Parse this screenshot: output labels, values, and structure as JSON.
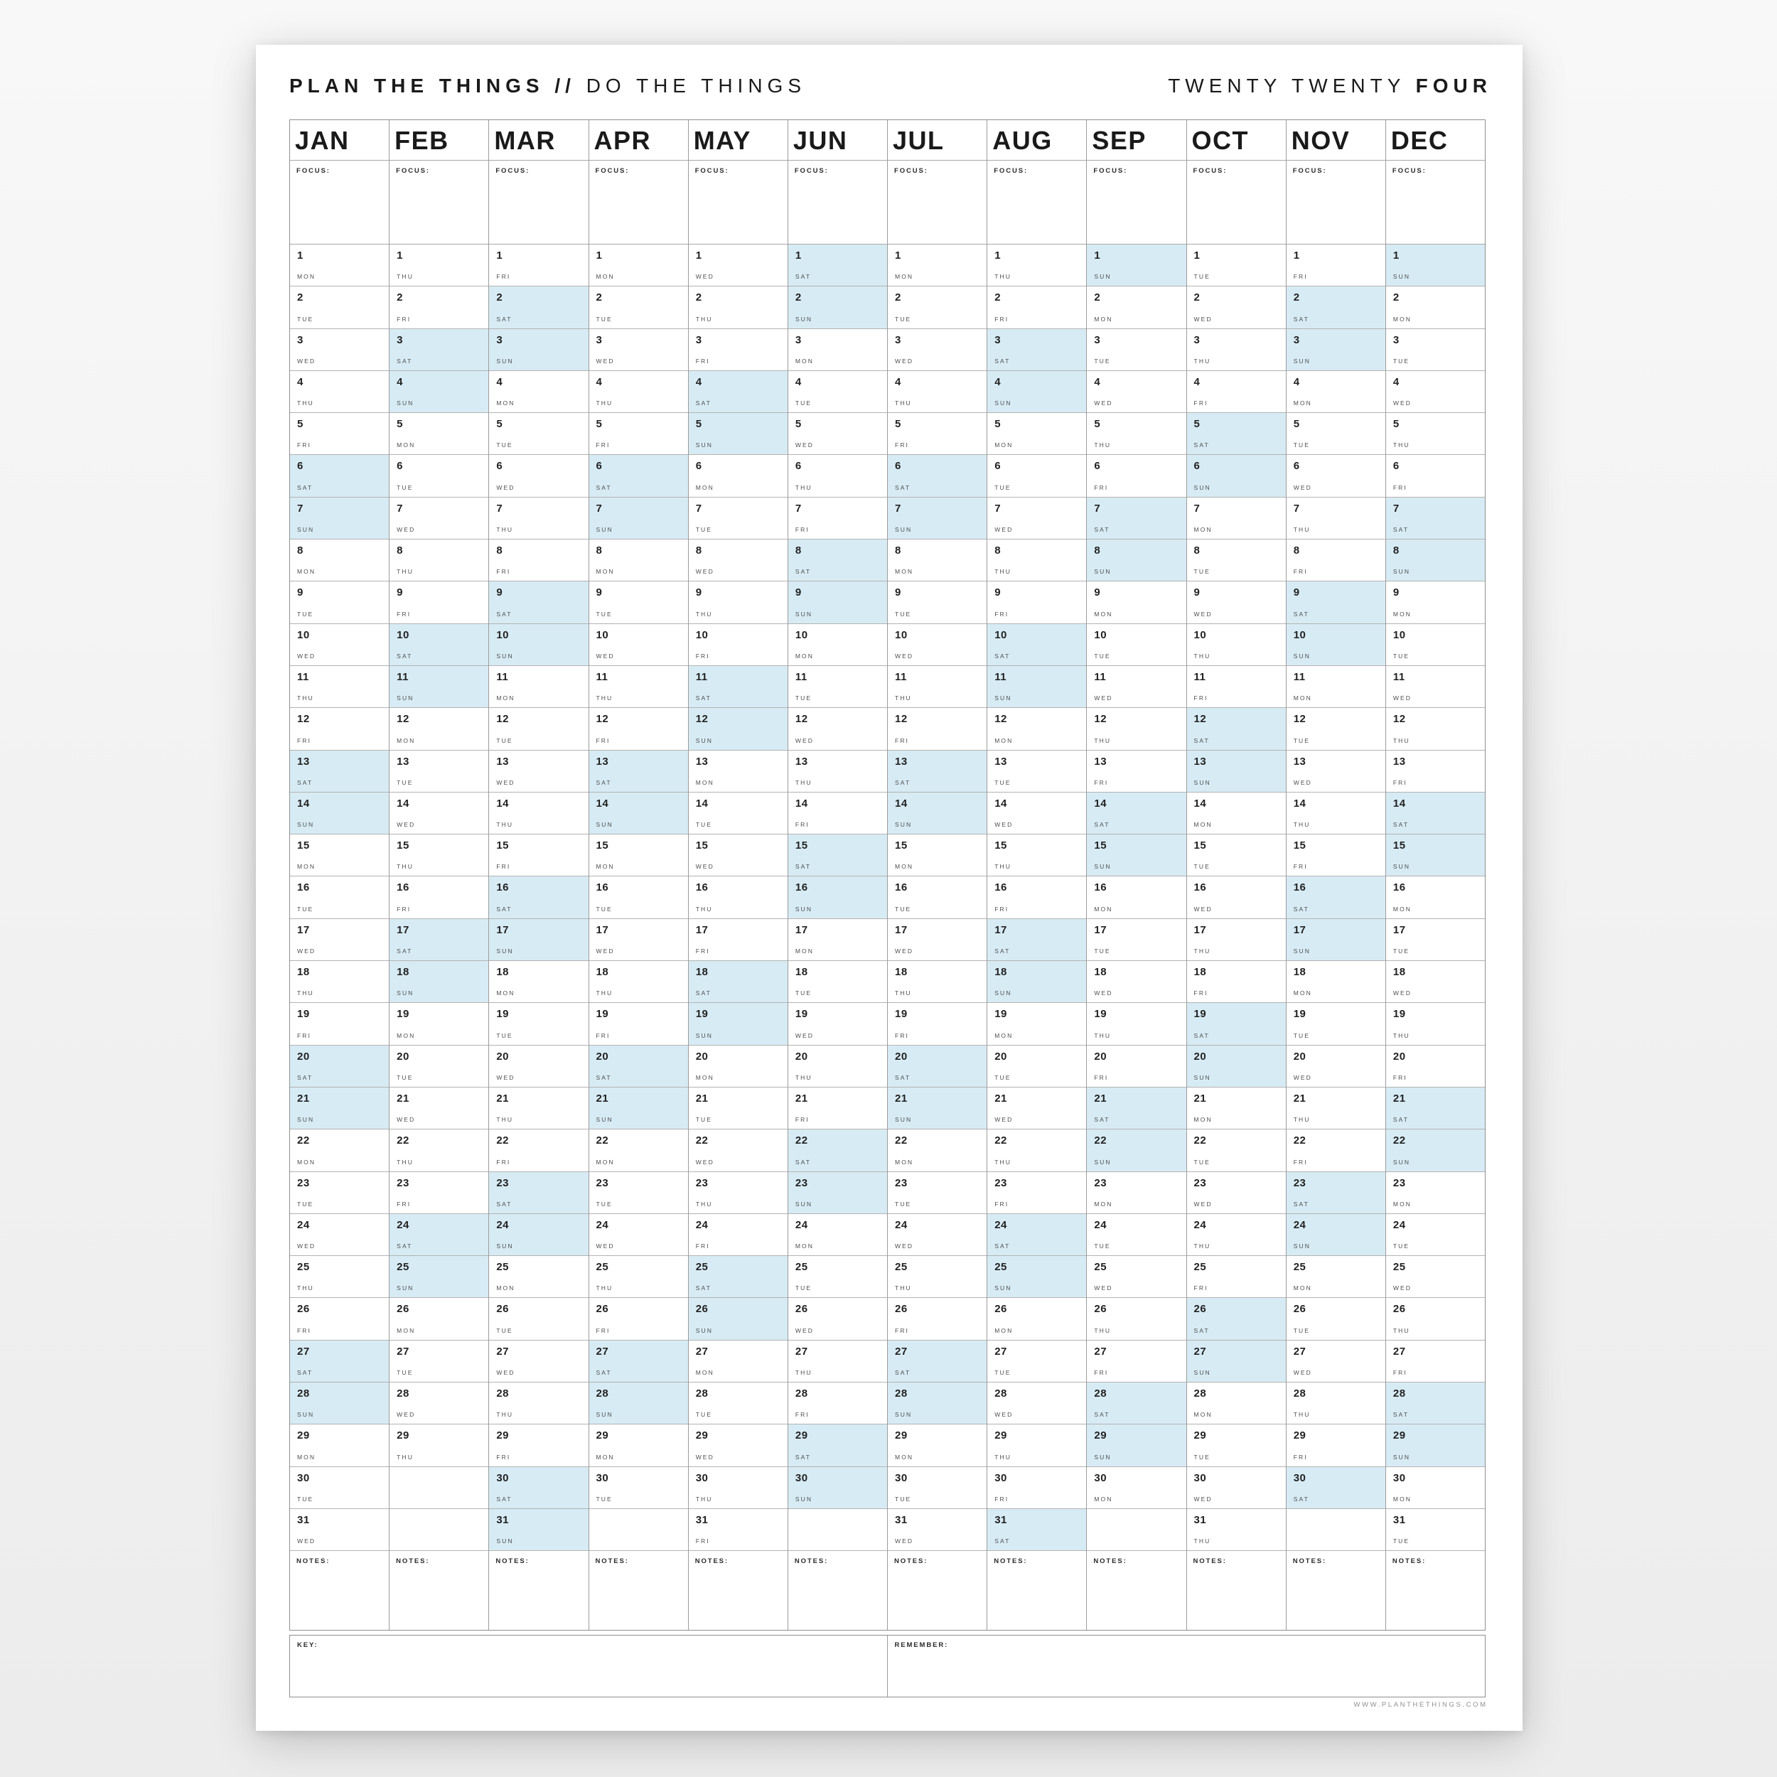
{
  "header": {
    "title_bold": "PLAN THE THINGS //",
    "title_light": "DO THE THINGS",
    "year_light": "TWENTY TWENTY",
    "year_bold": "FOUR"
  },
  "labels": {
    "focus": "FOCUS:",
    "notes": "NOTES:",
    "key": "KEY:",
    "remember": "REMEMBER:"
  },
  "footer": {
    "url": "WWW.PLANTHETHINGS.COM"
  },
  "colors": {
    "weekend_highlight": "#d7ebf4",
    "outer_border": "#8f8f8f",
    "column_border": "#9c9c9c",
    "row_border": "#b3b3b3",
    "canvas_bg": "#f2f2f2",
    "page_bg": "#ffffff",
    "day_number_text": "#222222",
    "weekday_text": "#4e4e4e",
    "url_text": "#8f8f8f"
  },
  "calendar": {
    "year": "2024",
    "rows": 31,
    "weekend_days": [
      "SAT",
      "SUN"
    ],
    "months": [
      {
        "label": "JAN",
        "weekdays": [
          "MON",
          "TUE",
          "WED",
          "THU",
          "FRI",
          "SAT",
          "SUN",
          "MON",
          "TUE",
          "WED",
          "THU",
          "FRI",
          "SAT",
          "SUN",
          "MON",
          "TUE",
          "WED",
          "THU",
          "FRI",
          "SAT",
          "SUN",
          "MON",
          "TUE",
          "WED",
          "THU",
          "FRI",
          "SAT",
          "SUN",
          "MON",
          "TUE",
          "WED"
        ]
      },
      {
        "label": "FEB",
        "weekdays": [
          "THU",
          "FRI",
          "SAT",
          "SUN",
          "MON",
          "TUE",
          "WED",
          "THU",
          "FRI",
          "SAT",
          "SUN",
          "MON",
          "TUE",
          "WED",
          "THU",
          "FRI",
          "SAT",
          "SUN",
          "MON",
          "TUE",
          "WED",
          "THU",
          "FRI",
          "SAT",
          "SUN",
          "MON",
          "TUE",
          "WED",
          "THU"
        ]
      },
      {
        "label": "MAR",
        "weekdays": [
          "FRI",
          "SAT",
          "SUN",
          "MON",
          "TUE",
          "WED",
          "THU",
          "FRI",
          "SAT",
          "SUN",
          "MON",
          "TUE",
          "WED",
          "THU",
          "FRI",
          "SAT",
          "SUN",
          "MON",
          "TUE",
          "WED",
          "THU",
          "FRI",
          "SAT",
          "SUN",
          "MON",
          "TUE",
          "WED",
          "THU",
          "FRI",
          "SAT",
          "SUN"
        ]
      },
      {
        "label": "APR",
        "weekdays": [
          "MON",
          "TUE",
          "WED",
          "THU",
          "FRI",
          "SAT",
          "SUN",
          "MON",
          "TUE",
          "WED",
          "THU",
          "FRI",
          "SAT",
          "SUN",
          "MON",
          "TUE",
          "WED",
          "THU",
          "FRI",
          "SAT",
          "SUN",
          "MON",
          "TUE",
          "WED",
          "THU",
          "FRI",
          "SAT",
          "SUN",
          "MON",
          "TUE"
        ]
      },
      {
        "label": "MAY",
        "weekdays": [
          "WED",
          "THU",
          "FRI",
          "SAT",
          "SUN",
          "MON",
          "TUE",
          "WED",
          "THU",
          "FRI",
          "SAT",
          "SUN",
          "MON",
          "TUE",
          "WED",
          "THU",
          "FRI",
          "SAT",
          "SUN",
          "MON",
          "TUE",
          "WED",
          "THU",
          "FRI",
          "SAT",
          "SUN",
          "MON",
          "TUE",
          "WED",
          "THU",
          "FRI"
        ]
      },
      {
        "label": "JUN",
        "weekdays": [
          "SAT",
          "SUN",
          "MON",
          "TUE",
          "WED",
          "THU",
          "FRI",
          "SAT",
          "SUN",
          "MON",
          "TUE",
          "WED",
          "THU",
          "FRI",
          "SAT",
          "SUN",
          "MON",
          "TUE",
          "WED",
          "THU",
          "FRI",
          "SAT",
          "SUN",
          "MON",
          "TUE",
          "WED",
          "THU",
          "FRI",
          "SAT",
          "SUN"
        ]
      },
      {
        "label": "JUL",
        "weekdays": [
          "MON",
          "TUE",
          "WED",
          "THU",
          "FRI",
          "SAT",
          "SUN",
          "MON",
          "TUE",
          "WED",
          "THU",
          "FRI",
          "SAT",
          "SUN",
          "MON",
          "TUE",
          "WED",
          "THU",
          "FRI",
          "SAT",
          "SUN",
          "MON",
          "TUE",
          "WED",
          "THU",
          "FRI",
          "SAT",
          "SUN",
          "MON",
          "TUE",
          "WED"
        ]
      },
      {
        "label": "AUG",
        "weekdays": [
          "THU",
          "FRI",
          "SAT",
          "SUN",
          "MON",
          "TUE",
          "WED",
          "THU",
          "FRI",
          "SAT",
          "SUN",
          "MON",
          "TUE",
          "WED",
          "THU",
          "FRI",
          "SAT",
          "SUN",
          "MON",
          "TUE",
          "WED",
          "THU",
          "FRI",
          "SAT",
          "SUN",
          "MON",
          "TUE",
          "WED",
          "THU",
          "FRI",
          "SAT"
        ]
      },
      {
        "label": "SEP",
        "weekdays": [
          "SUN",
          "MON",
          "TUE",
          "WED",
          "THU",
          "FRI",
          "SAT",
          "SUN",
          "MON",
          "TUE",
          "WED",
          "THU",
          "FRI",
          "SAT",
          "SUN",
          "MON",
          "TUE",
          "WED",
          "THU",
          "FRI",
          "SAT",
          "SUN",
          "MON",
          "TUE",
          "WED",
          "THU",
          "FRI",
          "SAT",
          "SUN",
          "MON"
        ]
      },
      {
        "label": "OCT",
        "weekdays": [
          "TUE",
          "WED",
          "THU",
          "FRI",
          "SAT",
          "SUN",
          "MON",
          "TUE",
          "WED",
          "THU",
          "FRI",
          "SAT",
          "SUN",
          "MON",
          "TUE",
          "WED",
          "THU",
          "FRI",
          "SAT",
          "SUN",
          "MON",
          "TUE",
          "WED",
          "THU",
          "FRI",
          "SAT",
          "SUN",
          "MON",
          "TUE",
          "WED",
          "THU"
        ]
      },
      {
        "label": "NOV",
        "weekdays": [
          "FRI",
          "SAT",
          "SUN",
          "MON",
          "TUE",
          "WED",
          "THU",
          "FRI",
          "SAT",
          "SUN",
          "MON",
          "TUE",
          "WED",
          "THU",
          "FRI",
          "SAT",
          "SUN",
          "MON",
          "TUE",
          "WED",
          "THU",
          "FRI",
          "SAT",
          "SUN",
          "MON",
          "TUE",
          "WED",
          "THU",
          "FRI",
          "SAT"
        ]
      },
      {
        "label": "DEC",
        "weekdays": [
          "SUN",
          "MON",
          "TUE",
          "WED",
          "THU",
          "FRI",
          "SAT",
          "SUN",
          "MON",
          "TUE",
          "WED",
          "THU",
          "FRI",
          "SAT",
          "SUN",
          "MON",
          "TUE",
          "WED",
          "THU",
          "FRI",
          "SAT",
          "SUN",
          "MON",
          "TUE",
          "WED",
          "THU",
          "FRI",
          "SAT",
          "SUN",
          "MON",
          "TUE"
        ]
      }
    ]
  }
}
